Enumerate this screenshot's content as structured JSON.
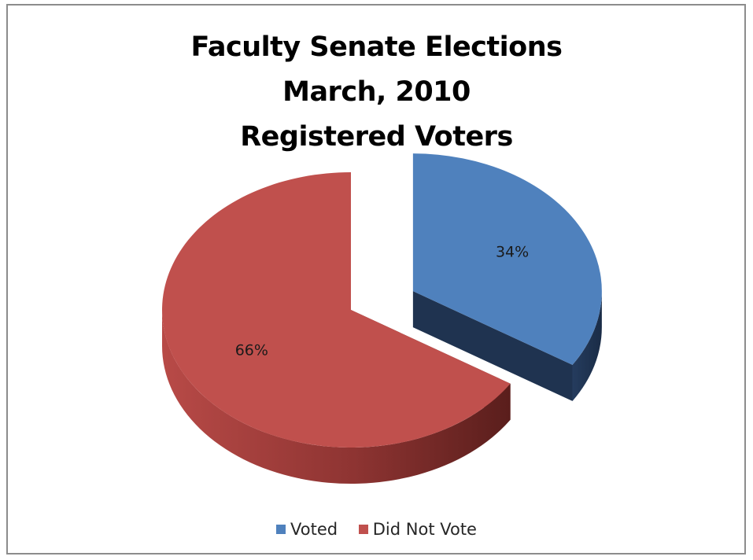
{
  "chart_data": {
    "type": "pie",
    "title_lines": [
      "Faculty Senate Elections",
      "March, 2010",
      "Registered Voters"
    ],
    "categories": [
      "Voted",
      "Did Not Vote"
    ],
    "values": [
      34,
      66
    ],
    "data_labels": [
      "34%",
      "66%"
    ],
    "colors": [
      "#4f81bd",
      "#c0504d"
    ],
    "side_colors": [
      "#1f3350",
      "#6b2422"
    ],
    "exploded": [
      "Voted"
    ],
    "style": "3d",
    "legend_position": "bottom"
  }
}
